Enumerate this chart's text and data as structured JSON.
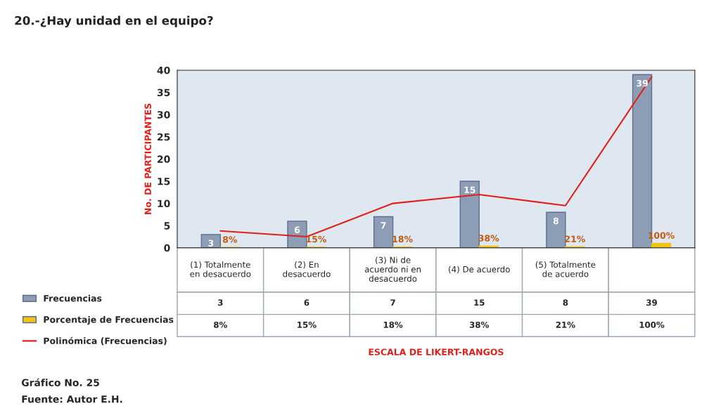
{
  "chart_data": {
    "type": "bar",
    "title": "20.-¿Hay unidad en el equipo?",
    "ylabel": "No. DE PARTICIPANTES",
    "categories": [
      "(1) Totalmente\nen desacuerdo",
      "(2) En\ndesacuerdo",
      "(3) Ni de\nacuerdo ni en\ndesacuerdo",
      "(4) De acuerdo",
      "(5) Totalmente\nde acuerdo",
      null
    ],
    "series": [
      {
        "name": "Frecuencias",
        "color": "#8e9db6",
        "values": [
          3,
          6,
          7,
          15,
          8,
          39
        ],
        "value_labels": [
          "3",
          "6",
          "7",
          "15",
          "8",
          "39"
        ]
      },
      {
        "name": "Porcentaje de Frecuencias",
        "color": "#f2c314",
        "values": [
          0.08,
          0.15,
          0.18,
          0.38,
          0.21,
          1
        ],
        "value_labels": [
          "8%",
          "15%",
          "18%",
          "38%",
          "21%",
          "100%"
        ]
      },
      {
        "name": "Polinómica (Frecuencias)",
        "type": "line",
        "color": "#e0201b",
        "values": [
          3.8,
          2.5,
          10,
          12,
          9.5,
          38.5
        ],
        "value_labels": [
          null,
          null,
          null,
          null,
          null,
          null
        ]
      }
    ],
    "ylim": [
      0,
      40
    ],
    "yticks": [
      0,
      5,
      10,
      15,
      20,
      25,
      30,
      35,
      40
    ],
    "data_labels": true,
    "legend": "bottom",
    "grid": false,
    "annotations": [
      "ESCALA DE LIKERT-RANGOS",
      "Gráfico No. 25",
      "Fuente: Autor E.H."
    ]
  }
}
